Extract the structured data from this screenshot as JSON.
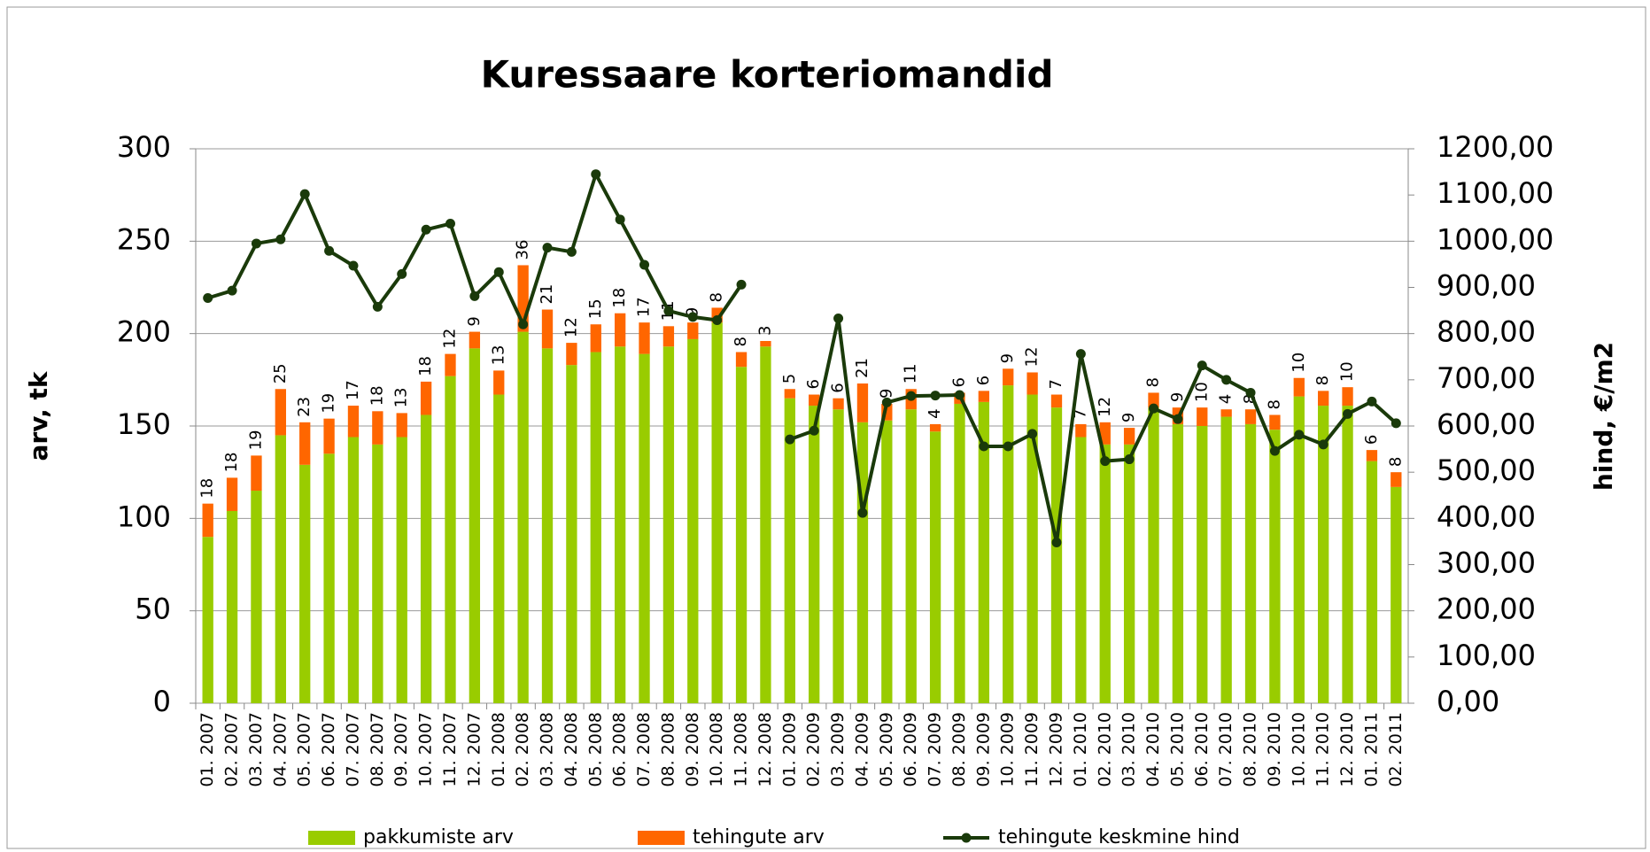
{
  "chart_data": {
    "type": "bar",
    "title": "Kuressaare korteriomandid",
    "y_label": "arv, tk",
    "y2_label": "hind, €/m2",
    "categories": [
      "01. 2007",
      "02. 2007",
      "03. 2007",
      "04. 2007",
      "05. 2007",
      "06. 2007",
      "07. 2007",
      "08. 2007",
      "09. 2007",
      "10. 2007",
      "11. 2007",
      "12. 2007",
      "01. 2008",
      "02. 2008",
      "03. 2008",
      "04. 2008",
      "05. 2008",
      "06. 2008",
      "07. 2008",
      "08. 2008",
      "09. 2008",
      "10. 2008",
      "11. 2008",
      "12. 2008",
      "01. 2009",
      "02. 2009",
      "03. 2009",
      "04. 2009",
      "05. 2009",
      "06. 2009",
      "07. 2009",
      "08. 2009",
      "09. 2009",
      "10. 2009",
      "11. 2009",
      "12. 2009",
      "01. 2010",
      "02. 2010",
      "03. 2010",
      "04. 2010",
      "05. 2010",
      "06. 2010",
      "07. 2010",
      "08. 2010",
      "09. 2010",
      "10. 2010",
      "11. 2010",
      "12. 2010",
      "01. 2011",
      "02. 2011"
    ],
    "series": [
      {
        "name": "pakkumiste arv",
        "color": "#99cc00",
        "stacked": true,
        "values": [
          90,
          104,
          115,
          145,
          129,
          135,
          144,
          140,
          144,
          156,
          177,
          192,
          167,
          201,
          192,
          183,
          190,
          193,
          189,
          193,
          197,
          206,
          182,
          193,
          165,
          161,
          159,
          152,
          153,
          159,
          147,
          162,
          163,
          172,
          167,
          160,
          144,
          140,
          140,
          160,
          151,
          150,
          155,
          151,
          148,
          166,
          161,
          161,
          131,
          117
        ]
      },
      {
        "name": "tehingute arv",
        "color": "#ff6600",
        "stacked": true,
        "data_labels": true,
        "values": [
          18,
          18,
          19,
          25,
          23,
          19,
          17,
          18,
          13,
          18,
          12,
          9,
          13,
          36,
          21,
          12,
          15,
          18,
          17,
          11,
          9,
          8,
          8,
          3,
          5,
          6,
          6,
          21,
          9,
          11,
          4,
          6,
          6,
          9,
          12,
          7,
          7,
          12,
          9,
          8,
          9,
          10,
          4,
          8,
          8,
          10,
          8,
          10,
          6,
          8
        ]
      },
      {
        "name": "tehingute keskmine hind",
        "color": "#1a3a0a",
        "type": "line",
        "axis": "y2",
        "values": [
          877,
          893,
          995,
          1004,
          1102,
          979,
          947,
          858,
          929,
          1025,
          1038,
          881,
          933,
          820,
          986,
          977,
          1145,
          1047,
          949,
          849,
          836,
          829,
          906,
          null,
          571,
          590,
          833,
          412,
          651,
          665,
          666,
          667,
          556,
          556,
          583,
          348,
          756,
          524,
          528,
          638,
          615,
          731,
          700,
          672,
          546,
          581,
          560,
          626,
          653,
          606
        ]
      }
    ],
    "ylim": [
      0,
      300
    ],
    "yticks": [
      0,
      50,
      100,
      150,
      200,
      250,
      300
    ],
    "y2lim": [
      0,
      1200
    ],
    "y2ticks": [
      {
        "value": 0,
        "label": "0,00"
      },
      {
        "value": 100,
        "label": "100,00"
      },
      {
        "value": 200,
        "label": "200,00"
      },
      {
        "value": 300,
        "label": "300,00"
      },
      {
        "value": 400,
        "label": "400,00"
      },
      {
        "value": 500,
        "label": "500,00"
      },
      {
        "value": 600,
        "label": "600,00"
      },
      {
        "value": 700,
        "label": "700,00"
      },
      {
        "value": 800,
        "label": "800,00"
      },
      {
        "value": 900,
        "label": "900,00"
      },
      {
        "value": 1000,
        "label": "1000,00"
      },
      {
        "value": 1100,
        "label": "1100,00"
      },
      {
        "value": 1200,
        "label": "1200,00"
      }
    ],
    "grid": true,
    "legend": "bottom"
  }
}
